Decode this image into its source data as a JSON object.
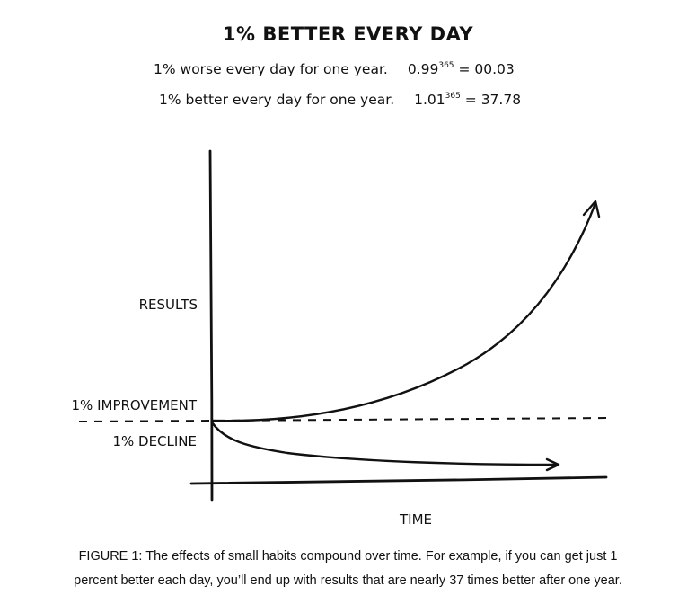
{
  "title": "1% BETTER EVERY DAY",
  "formulas": [
    {
      "text": "1% worse every day for one year.",
      "base": "0.99",
      "exp": "365",
      "result": "= 00.03"
    },
    {
      "text": "1% better every day for one year.",
      "base": "1.01",
      "exp": "365",
      "result": "= 37.78"
    }
  ],
  "chart_data": {
    "type": "line",
    "ylabel": "RESULTS",
    "xlabel": "TIME",
    "annotations": [
      "1% IMPROVEMENT",
      "1% DECLINE"
    ],
    "series": [
      {
        "name": "1% IMPROVEMENT",
        "trend": "exponential growth",
        "end_value": 37.78
      },
      {
        "name": "1% DECLINE",
        "trend": "exponential decay",
        "end_value": 0.03
      }
    ],
    "baseline": 1.0,
    "grid": false,
    "legend": "none"
  },
  "caption": [
    "FIGURE 1: The effects of small habits compound over time. For example, if you can get just 1",
    "percent better each day, you’ll end up with results that are nearly 37 times better after one year."
  ]
}
